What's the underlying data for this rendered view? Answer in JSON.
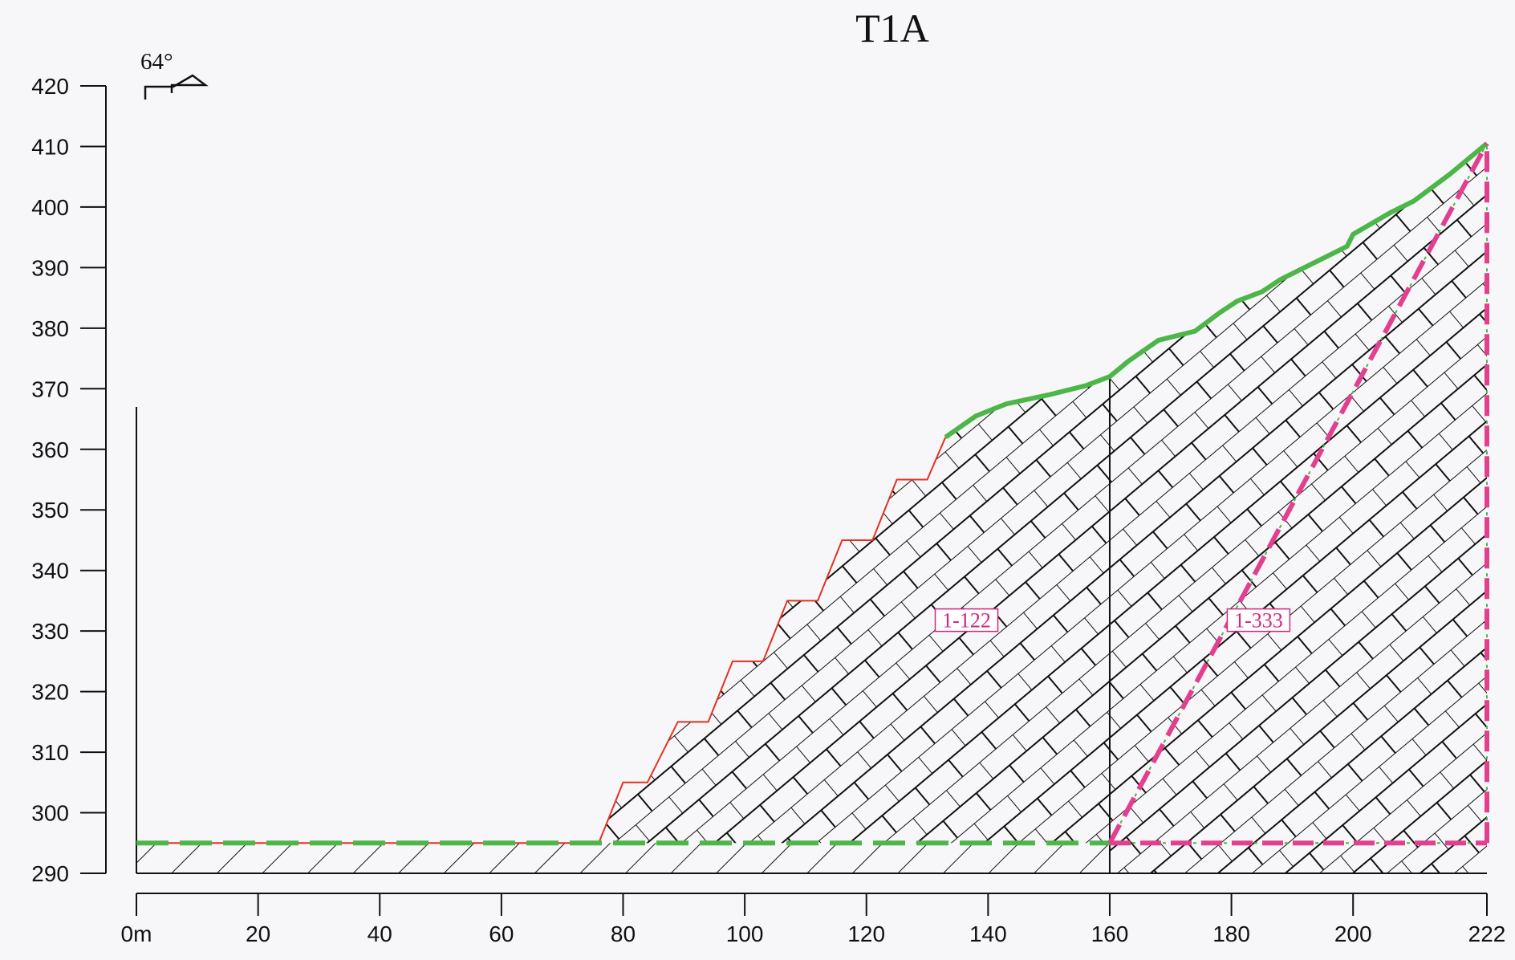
{
  "title": "T1A",
  "dip_angle": "64°",
  "colors": {
    "topography": "#4cb648",
    "step_edge": "#e5301f",
    "boundary": "#e2408e",
    "label": "#d6257f",
    "hatch": "#111111"
  },
  "chart_data": {
    "type": "area",
    "title": "T1A",
    "x_unit": "m",
    "xlim": [
      0,
      222
    ],
    "ylim": [
      290,
      420
    ],
    "x_ticks": [
      0,
      20,
      40,
      60,
      80,
      100,
      120,
      140,
      160,
      180,
      200,
      222
    ],
    "x_tick_labels": [
      "0m",
      "20",
      "40",
      "60",
      "80",
      "100",
      "120",
      "140",
      "160",
      "180",
      "200",
      "222"
    ],
    "y_ticks": [
      290,
      300,
      310,
      320,
      330,
      340,
      350,
      360,
      370,
      380,
      390,
      400,
      410,
      420
    ],
    "y_tick_labels": [
      "290",
      "300",
      "310",
      "320",
      "330",
      "340",
      "350",
      "360",
      "370",
      "380",
      "390",
      "400",
      "410",
      "420"
    ],
    "dip_angle_deg": 64,
    "units": [
      {
        "label": "1-122",
        "label_position": [
          142,
          331
        ]
      },
      {
        "label": "1-333",
        "label_position": [
          190,
          331
        ]
      }
    ],
    "baseline_elevation": 295,
    "section_bottom": 290,
    "profile": {
      "flat": [
        [
          0,
          295
        ],
        [
          76,
          295
        ]
      ],
      "stepped": [
        [
          76,
          295
        ],
        [
          80,
          305
        ],
        [
          84,
          305
        ],
        [
          89,
          315
        ],
        [
          94,
          315
        ],
        [
          98,
          325
        ],
        [
          103,
          325
        ],
        [
          107,
          335
        ],
        [
          112,
          335
        ],
        [
          116,
          345
        ],
        [
          121,
          345
        ],
        [
          125,
          355
        ],
        [
          130,
          355
        ],
        [
          133,
          362
        ]
      ],
      "surface": [
        [
          133,
          362
        ],
        [
          138,
          365.5
        ],
        [
          143,
          367.5
        ],
        [
          150,
          369
        ],
        [
          156,
          370.5
        ],
        [
          160,
          372
        ],
        [
          163,
          374.5
        ],
        [
          168,
          378
        ],
        [
          174,
          379.5
        ],
        [
          178,
          382.5
        ],
        [
          181,
          384.5
        ],
        [
          185,
          386
        ],
        [
          188,
          388
        ],
        [
          193,
          390.5
        ],
        [
          199,
          393.5
        ],
        [
          200,
          395.5
        ],
        [
          206,
          399
        ],
        [
          210,
          401
        ],
        [
          212,
          402.5
        ],
        [
          216,
          405.5
        ],
        [
          222,
          410.5
        ]
      ]
    },
    "boundaries": [
      {
        "name": "contact-1",
        "points": [
          [
            160,
            295
          ],
          [
            222,
            410.5
          ]
        ]
      },
      {
        "name": "contact-2",
        "points": [
          [
            222,
            295
          ],
          [
            222,
            410.5
          ]
        ]
      },
      {
        "name": "base-right",
        "points": [
          [
            160,
            295
          ],
          [
            222,
            295
          ]
        ]
      }
    ],
    "vertical_divider_x": 160
  }
}
